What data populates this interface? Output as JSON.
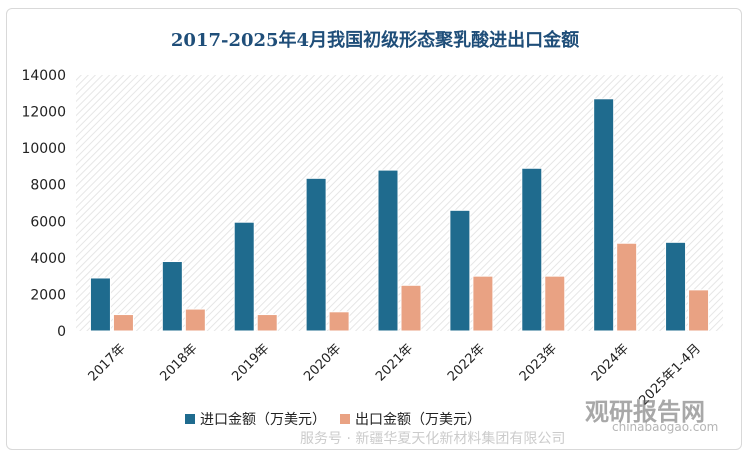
{
  "chart_data": {
    "type": "bar",
    "title": "2017-2025年4月我国初级形态聚乳酸进出口金额",
    "categories": [
      "2017年",
      "2018年",
      "2019年",
      "2020年",
      "2021年",
      "2022年",
      "2023年",
      "2024年",
      "2025年1-4月"
    ],
    "series": [
      {
        "name": "进口金额（万美元）",
        "color": "#1f6b8e",
        "values": [
          2900,
          3800,
          5950,
          8350,
          8800,
          6600,
          8900,
          12700,
          4850
        ]
      },
      {
        "name": "出口金额（万美元）",
        "color": "#e9a283",
        "values": [
          900,
          1200,
          900,
          1050,
          2500,
          3000,
          3000,
          4800,
          2250
        ]
      }
    ],
    "ylim": [
      0,
      14000
    ],
    "yticks": [
      "0",
      "2000",
      "4000",
      "6000",
      "8000",
      "10000",
      "12000",
      "14000"
    ],
    "grid": false,
    "legend_position": "bottom"
  },
  "watermark": {
    "brand_cn": "观研报告网",
    "brand_url": "chinabaogao.com",
    "line": "服务号 · 新疆华夏天化新材料集团有限公司"
  }
}
